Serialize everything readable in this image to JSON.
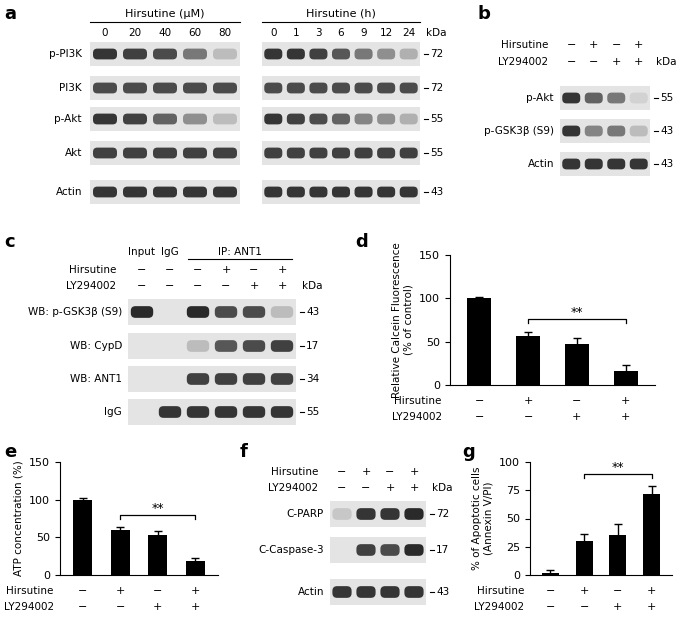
{
  "blot_panels": [
    {
      "panel_label": "a",
      "kda_label": "kDa",
      "row_labels": [
        "p-PI3K",
        "PI3K",
        "p-Akt",
        "Akt",
        "Actin"
      ],
      "kda": [
        72,
        72,
        55,
        55,
        43
      ],
      "blots": [
        {
          "header": "Hirsutine (μM)",
          "lanes": [
            0,
            20,
            40,
            60,
            80
          ],
          "bands": [
            [
              0.9,
              0.85,
              0.8,
              0.6,
              0.3
            ],
            [
              0.8,
              0.8,
              0.8,
              0.8,
              0.8
            ],
            [
              0.9,
              0.85,
              0.7,
              0.5,
              0.3
            ],
            [
              0.85,
              0.85,
              0.85,
              0.85,
              0.85
            ],
            [
              0.9,
              0.9,
              0.9,
              0.9,
              0.9
            ]
          ]
        },
        {
          "header": "Hirsutine (h)",
          "lanes": [
            0,
            1,
            3,
            6,
            9,
            12,
            24
          ],
          "bands": [
            [
              0.9,
              0.9,
              0.85,
              0.75,
              0.6,
              0.5,
              0.35
            ],
            [
              0.8,
              0.8,
              0.8,
              0.8,
              0.8,
              0.8,
              0.8
            ],
            [
              0.9,
              0.85,
              0.8,
              0.7,
              0.55,
              0.5,
              0.35
            ],
            [
              0.85,
              0.85,
              0.85,
              0.85,
              0.85,
              0.85,
              0.85
            ],
            [
              0.9,
              0.9,
              0.9,
              0.9,
              0.9,
              0.9,
              0.9
            ]
          ]
        }
      ]
    },
    {
      "panel_label": "b",
      "kda_label": "kDa",
      "treatments": [
        {
          "name": "Hirsutine",
          "signs": [
            "−",
            "+",
            "−",
            "+"
          ]
        },
        {
          "name": "LY294002",
          "signs": [
            "−",
            "−",
            "+",
            "+"
          ]
        }
      ],
      "row_labels": [
        "p-Akt",
        "p-GSK3β (S9)",
        "Actin"
      ],
      "kda": [
        55,
        43,
        43
      ],
      "blots": [
        {
          "bands": [
            [
              0.9,
              0.7,
              0.6,
              0.2
            ],
            [
              0.9,
              0.55,
              0.6,
              0.3
            ],
            [
              0.9,
              0.9,
              0.9,
              0.9
            ]
          ]
        }
      ]
    },
    {
      "panel_label": "c",
      "kda_label": "kDa",
      "lane_headers": [
        {
          "label": "Input",
          "lanes": [
            0
          ]
        },
        {
          "label": "IgG",
          "lanes": [
            1
          ]
        },
        {
          "label": "IP: ANT1",
          "lanes": [
            2,
            3,
            4,
            5
          ]
        }
      ],
      "treatments": [
        {
          "name": "Hirsutine",
          "signs": [
            "−",
            "−",
            "−",
            "+",
            "−",
            "+"
          ]
        },
        {
          "name": "LY294002",
          "signs": [
            "−",
            "−",
            "−",
            "−",
            "+",
            "+"
          ]
        }
      ],
      "row_labels": [
        "WB: p-GSK3β (S9)",
        "WB: CypD",
        "WB: ANT1",
        "IgG"
      ],
      "kda": [
        43,
        17,
        34,
        55
      ],
      "blots": [
        {
          "bands": [
            [
              0.95,
              0,
              0.95,
              0.8,
              0.8,
              0.3
            ],
            [
              0,
              0,
              0.3,
              0.75,
              0.8,
              0.85
            ],
            [
              0,
              0,
              0.85,
              0.85,
              0.85,
              0.85
            ],
            [
              0,
              0.9,
              0.9,
              0.9,
              0.9,
              0.9
            ]
          ]
        }
      ]
    },
    {
      "panel_label": "f",
      "kda_label": "kDa",
      "treatments": [
        {
          "name": "Hirsutine",
          "signs": [
            "−",
            "+",
            "−",
            "+"
          ]
        },
        {
          "name": "LY294002",
          "signs": [
            "−",
            "−",
            "+",
            "+"
          ]
        }
      ],
      "row_labels": [
        "C-PARP",
        "C-Caspase-3",
        "Actin"
      ],
      "kda": [
        72,
        17,
        43
      ],
      "blots": [
        {
          "bands": [
            [
              0.25,
              0.9,
              0.9,
              0.95
            ],
            [
              0,
              0.85,
              0.8,
              0.95
            ],
            [
              0.9,
              0.9,
              0.9,
              0.9
            ]
          ]
        }
      ]
    }
  ],
  "chart_data": [
    {
      "type": "bar",
      "panel_label": "d",
      "y_label": "Relative Calcein Fluorescence\n(% of control)",
      "values": [
        100,
        57,
        47,
        16
      ],
      "error": [
        2,
        4,
        7,
        7
      ],
      "color": "#000000",
      "ylim": [
        0,
        150
      ],
      "yticks": [
        0,
        50,
        100,
        150
      ],
      "treatments": [
        {
          "name": "Hirsutine",
          "signs": [
            "−",
            "+",
            "−",
            "+"
          ]
        },
        {
          "name": "LY294002",
          "signs": [
            "−",
            "−",
            "+",
            "+"
          ]
        }
      ],
      "significance": {
        "between": [
          1,
          3
        ],
        "label": "**"
      }
    },
    {
      "type": "bar",
      "panel_label": "e",
      "y_label": "ATP concentration (%)",
      "values": [
        100,
        60,
        53,
        19
      ],
      "error": [
        2,
        4,
        5,
        4
      ],
      "color": "#000000",
      "ylim": [
        0,
        150
      ],
      "yticks": [
        0,
        50,
        100,
        150
      ],
      "treatments": [
        {
          "name": "Hirsutine",
          "signs": [
            "−",
            "+",
            "−",
            "+"
          ]
        },
        {
          "name": "LY294002",
          "signs": [
            "−",
            "−",
            "+",
            "+"
          ]
        }
      ],
      "significance": {
        "between": [
          1,
          3
        ],
        "label": "**"
      }
    },
    {
      "type": "bar",
      "panel_label": "g",
      "y_label": "% of Apoptotic cells\n(Annexin V/PI)",
      "values": [
        2,
        30,
        35,
        72
      ],
      "error": [
        2,
        6,
        10,
        7
      ],
      "color": "#000000",
      "ylim": [
        0,
        100
      ],
      "yticks": [
        0,
        25,
        50,
        75,
        100
      ],
      "treatments": [
        {
          "name": "Hirsutine",
          "signs": [
            "−",
            "+",
            "−",
            "+"
          ]
        },
        {
          "name": "LY294002",
          "signs": [
            "−",
            "−",
            "+",
            "+"
          ]
        }
      ],
      "significance": {
        "between": [
          1,
          3
        ],
        "label": "**"
      }
    }
  ]
}
